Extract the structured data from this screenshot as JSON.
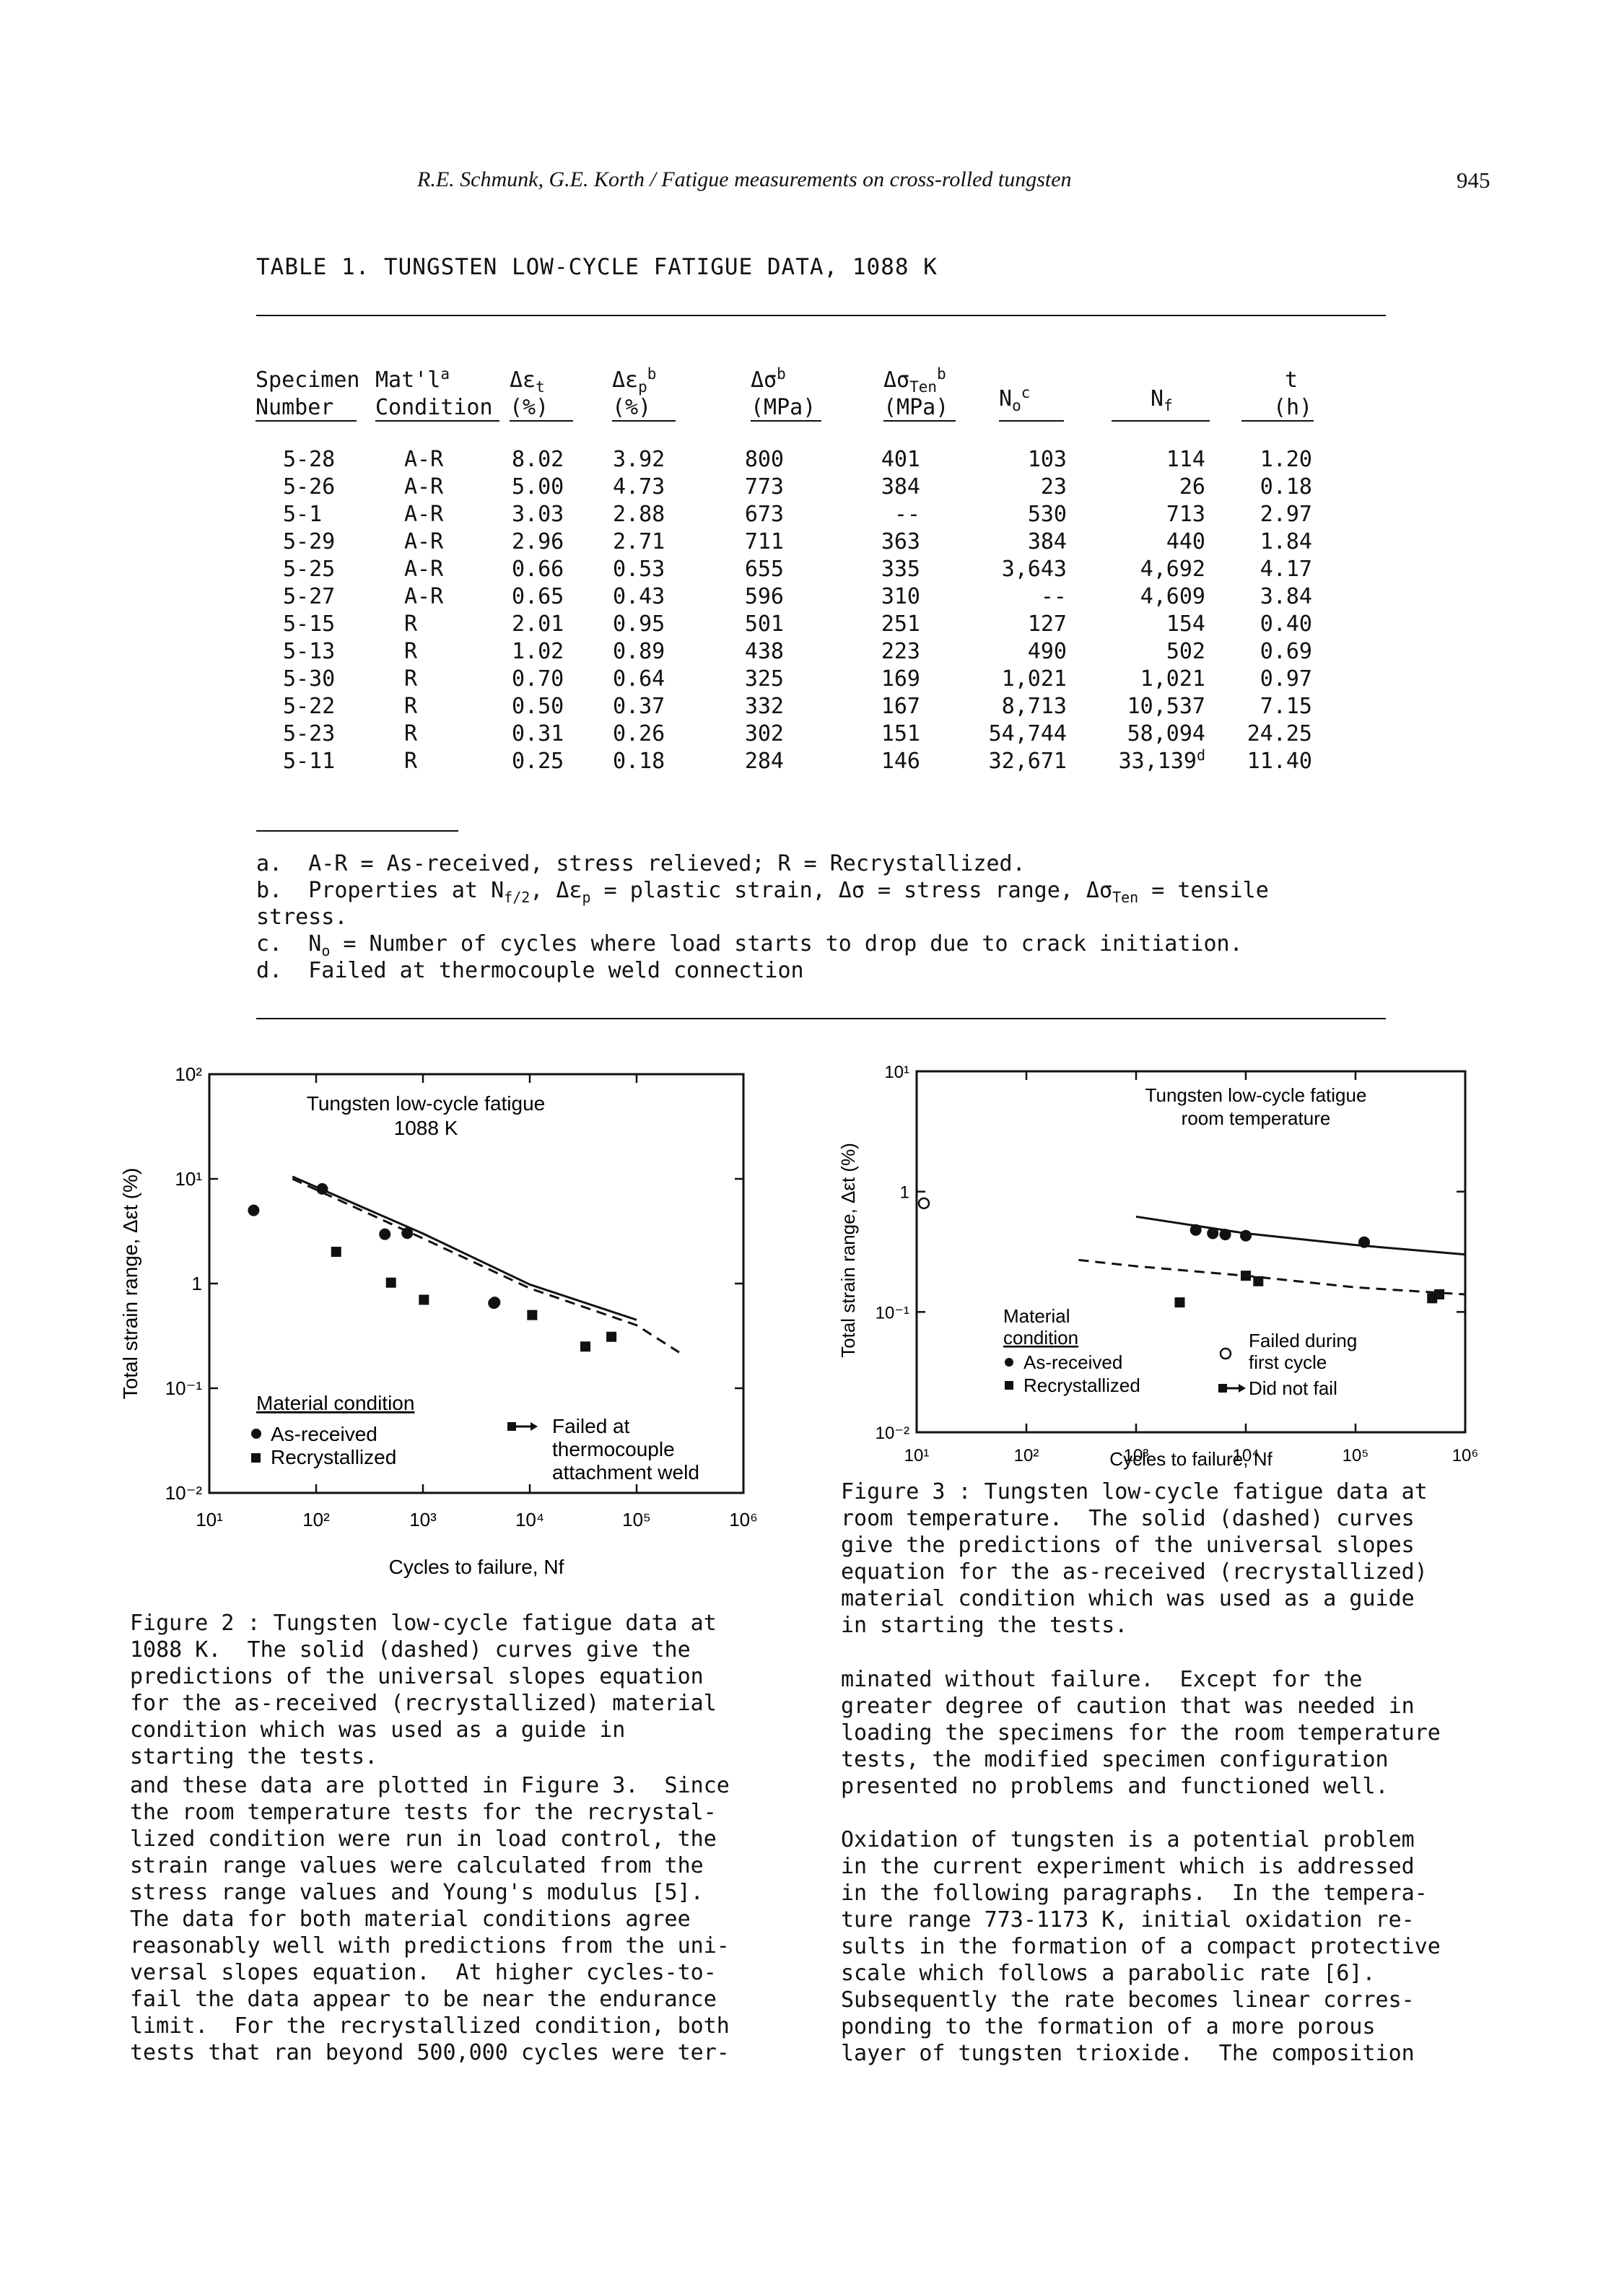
{
  "running_head": "R.E. Schmunk, G.E. Korth / Fatigue measurements on cross-rolled tungsten",
  "page_number": "945",
  "table": {
    "title": "TABLE 1.  TUNGSTEN LOW-CYCLE FATIGUE DATA, 1088 K",
    "headers": {
      "specimen_1": "Specimen",
      "specimen_2": "Number",
      "mat_1": "Mat'l",
      "mat_sup": "a",
      "mat_2": "Condition",
      "det": "Δε",
      "det_sub": "t",
      "det_unit": "(%)",
      "dep": "Δε",
      "dep_sub": "p",
      "dep_sup": "b",
      "dep_unit": "(%)",
      "ds": "Δσ",
      "ds_sup": "b",
      "ds_unit": "(MPa)",
      "dst": "Δσ",
      "dst_sub": "Ten",
      "dst_sup": "b",
      "dst_unit": "(MPa)",
      "no": "N",
      "no_sub": "o",
      "no_sup": "c",
      "nf": "N",
      "nf_sub": "f",
      "t": "t",
      "t_unit": "(h)"
    },
    "rows": [
      {
        "spec": "5-28",
        "cond": "A-R",
        "det": "8.02",
        "dep": "3.92",
        "ds": "800",
        "dst": "401",
        "no": "103",
        "nf": "114",
        "nf_sup": "",
        "t": "1.20"
      },
      {
        "spec": "5-26",
        "cond": "A-R",
        "det": "5.00",
        "dep": "4.73",
        "ds": "773",
        "dst": "384",
        "no": "23",
        "nf": "26",
        "nf_sup": "",
        "t": "0.18"
      },
      {
        "spec": "5-1",
        "cond": "A-R",
        "det": "3.03",
        "dep": "2.88",
        "ds": "673",
        "dst": "--",
        "no": "530",
        "nf": "713",
        "nf_sup": "",
        "t": "2.97"
      },
      {
        "spec": "5-29",
        "cond": "A-R",
        "det": "2.96",
        "dep": "2.71",
        "ds": "711",
        "dst": "363",
        "no": "384",
        "nf": "440",
        "nf_sup": "",
        "t": "1.84"
      },
      {
        "spec": "5-25",
        "cond": "A-R",
        "det": "0.66",
        "dep": "0.53",
        "ds": "655",
        "dst": "335",
        "no": "3,643",
        "nf": "4,692",
        "nf_sup": "",
        "t": "4.17"
      },
      {
        "spec": "5-27",
        "cond": "A-R",
        "det": "0.65",
        "dep": "0.43",
        "ds": "596",
        "dst": "310",
        "no": "--",
        "nf": "4,609",
        "nf_sup": "",
        "t": "3.84"
      },
      {
        "spec": "5-15",
        "cond": "R",
        "det": "2.01",
        "dep": "0.95",
        "ds": "501",
        "dst": "251",
        "no": "127",
        "nf": "154",
        "nf_sup": "",
        "t": "0.40"
      },
      {
        "spec": "5-13",
        "cond": "R",
        "det": "1.02",
        "dep": "0.89",
        "ds": "438",
        "dst": "223",
        "no": "490",
        "nf": "502",
        "nf_sup": "",
        "t": "0.69"
      },
      {
        "spec": "5-30",
        "cond": "R",
        "det": "0.70",
        "dep": "0.64",
        "ds": "325",
        "dst": "169",
        "no": "1,021",
        "nf": "1,021",
        "nf_sup": "",
        "t": "0.97"
      },
      {
        "spec": "5-22",
        "cond": "R",
        "det": "0.50",
        "dep": "0.37",
        "ds": "332",
        "dst": "167",
        "no": "8,713",
        "nf": "10,537",
        "nf_sup": "",
        "t": "7.15"
      },
      {
        "spec": "5-23",
        "cond": "R",
        "det": "0.31",
        "dep": "0.26",
        "ds": "302",
        "dst": "151",
        "no": "54,744",
        "nf": "58,094",
        "nf_sup": "",
        "t": "24.25"
      },
      {
        "spec": "5-11",
        "cond": "R",
        "det": "0.25",
        "dep": "0.18",
        "ds": "284",
        "dst": "146",
        "no": "32,671",
        "nf": "33,139",
        "nf_sup": "d",
        "t": "11.40"
      }
    ],
    "footnotes": {
      "a": "a.  A-R = As-received, stress relieved; R = Recrystallized.",
      "b1": "b.  Properties at N",
      "b1_sub1": "f/2",
      "b1_mid": ", Δε",
      "b1_sub2": "p",
      "b1_rest": " = plastic strain, Δσ = stress range, Δσ",
      "b1_sub3": "Ten",
      "b1_end": " = tensile",
      "b2": "stress.",
      "c1": "c.  N",
      "c1_sub": "o",
      "c1_rest": " = Number of cycles where load starts to drop due to crack initiation.",
      "d": "d.  Failed at thermocouple weld connection"
    }
  },
  "figure2": {
    "title_line1": "Tungsten low-cycle fatigue",
    "title_line2": "1088 K",
    "xlabel": "Cycles to failure, Nf",
    "ylabel": "Total strain range, Δεt (%)",
    "x_ticks": [
      "10¹",
      "10²",
      "10³",
      "10⁴",
      "10⁵",
      "10⁶"
    ],
    "y_ticks": [
      "10²",
      "10¹",
      "1",
      "10⁻¹",
      "10⁻²"
    ],
    "legend_heading": "Material condition",
    "legend_as_received": "As-received",
    "legend_recrystallized": "Recrystallized",
    "legend_failed_1": "Failed at",
    "legend_failed_2": "thermocouple",
    "legend_failed_3": "attachment weld",
    "caption": "Figure 2 : Tungsten low-cycle fatigue data at\n1088 K.  The solid (dashed) curves give the\npredictions of the universal slopes equation\nfor the as-received (recrystallized) material\ncondition which was used as a guide in\nstarting the tests."
  },
  "figure3": {
    "title_line1": "Tungsten low-cycle fatigue",
    "title_line2": "room temperature",
    "xlabel": "Cycles to failure, Nf",
    "ylabel": "Total strain range, Δεt (%)",
    "x_ticks": [
      "10¹",
      "10²",
      "10³",
      "10⁴",
      "10⁵",
      "10⁶"
    ],
    "y_ticks": [
      "10¹",
      "1",
      "10⁻¹",
      "10⁻²"
    ],
    "legend_heading_1": "Material",
    "legend_heading_2": "condition",
    "legend_as_received": "As-received",
    "legend_recrystallized": "Recrystallized",
    "legend_failed_first_1": "Failed during",
    "legend_failed_first_2": "first cycle",
    "legend_did_not_fail": "Did not fail",
    "caption": "Figure 3 : Tungsten low-cycle fatigue data at\nroom temperature.  The solid (dashed) curves\ngive the predictions of the universal slopes\nequation for the as-received (recrystallized)\nmaterial condition which was used as a guide\nin starting the tests."
  },
  "chart_data": [
    {
      "type": "scatter",
      "title": "Tungsten low-cycle fatigue 1088 K",
      "xlabel": "Cycles to failure, Nf",
      "ylabel": "Total strain range, Δεt (%)",
      "x_scale": "log",
      "y_scale": "log",
      "xlim": [
        10,
        1000000
      ],
      "ylim": [
        0.01,
        100
      ],
      "series": [
        {
          "name": "As-received",
          "marker": "circle",
          "x": [
            26,
            114,
            440,
            713,
            4609,
            4692
          ],
          "y": [
            5.0,
            8.02,
            2.96,
            3.03,
            0.65,
            0.66
          ]
        },
        {
          "name": "Recrystallized",
          "marker": "square",
          "x": [
            154,
            502,
            1021,
            10537,
            33139,
            58094
          ],
          "y": [
            2.01,
            1.02,
            0.7,
            0.5,
            0.25,
            0.31
          ]
        }
      ],
      "curves": [
        {
          "name": "As-received",
          "style": "solid",
          "x": [
            60,
            1000,
            10000,
            100000
          ],
          "y": [
            10.5,
            3.0,
            0.98,
            0.45
          ]
        },
        {
          "name": "Recrystallized",
          "style": "dashed",
          "x": [
            60,
            1000,
            10000,
            100000,
            250000
          ],
          "y": [
            10.0,
            2.7,
            0.9,
            0.4,
            0.22
          ]
        }
      ],
      "legend": "bottom"
    },
    {
      "type": "scatter",
      "title": "Tungsten low-cycle fatigue room temperature",
      "xlabel": "Cycles to failure, Nf",
      "ylabel": "Total strain range, Δεt (%)",
      "x_scale": "log",
      "y_scale": "log",
      "xlim": [
        10,
        1000000
      ],
      "ylim": [
        0.01,
        10
      ],
      "series": [
        {
          "name": "As-received",
          "marker": "circle",
          "x": [
            3500,
            5000,
            6500,
            10000,
            120000
          ],
          "y": [
            0.48,
            0.45,
            0.44,
            0.43,
            0.38
          ]
        },
        {
          "name": "Recrystallized",
          "marker": "square",
          "x": [
            2500,
            10000,
            13000,
            500000,
            580000
          ],
          "y": [
            0.12,
            0.2,
            0.18,
            0.13,
            0.14
          ]
        },
        {
          "name": "Failed during first cycle",
          "marker": "open-circle",
          "x": [
            10
          ],
          "y": [
            0.8
          ]
        }
      ],
      "curves": [
        {
          "name": "As-received",
          "style": "solid",
          "x": [
            1000,
            10000,
            100000,
            1000000
          ],
          "y": [
            0.62,
            0.45,
            0.36,
            0.3
          ]
        },
        {
          "name": "Recrystallized",
          "style": "dashed",
          "x": [
            300,
            1000,
            10000,
            100000,
            1000000
          ],
          "y": [
            0.27,
            0.24,
            0.2,
            0.16,
            0.14
          ]
        }
      ],
      "legend": "bottom"
    }
  ],
  "body_text": {
    "left": "and these data are plotted in Figure 3.  Since\nthe room temperature tests for the recrystal-\nlized condition were run in load control, the\nstrain range values were calculated from the\nstress range values and Young's modulus [5].\nThe data for both material conditions agree\nreasonably well with predictions from the uni-\nversal slopes equation.  At higher cycles-to-\nfail the data appear to be near the endurance\nlimit.  For the recrystallized condition, both\ntests that ran beyond 500,000 cycles were ter-",
    "right_1": "minated without failure.  Except for the\ngreater degree of caution that was needed in\nloading the specimens for the room temperature\ntests, the modified specimen configuration\npresented no problems and functioned well.",
    "right_2": "Oxidation of tungsten is a potential problem\nin the current experiment which is addressed\nin the following paragraphs.  In the tempera-\nture range 773-1173 K, initial oxidation re-\nsults in the formation of a compact protective\nscale which follows a parabolic rate [6].\nSubsequently the rate becomes linear corres-\nponding to the formation of a more porous\nlayer of tungsten trioxide.  The composition"
  }
}
